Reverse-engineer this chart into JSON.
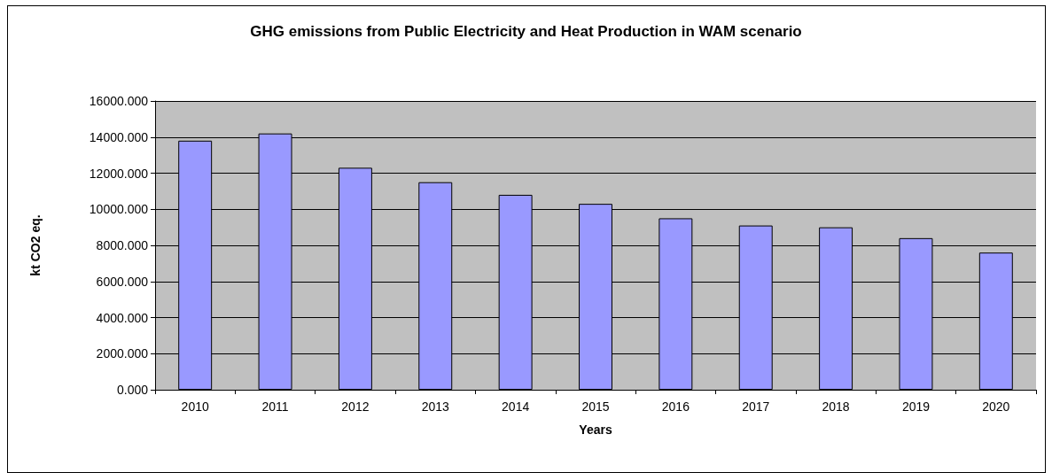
{
  "chart_data": {
    "type": "bar",
    "title": "GHG emissions from Public Electricity and Heat Production in WAM scenario",
    "xlabel": "Years",
    "ylabel": "kt CO2 eq.",
    "categories": [
      "2010",
      "2011",
      "2012",
      "2013",
      "2014",
      "2015",
      "2016",
      "2017",
      "2018",
      "2019",
      "2020"
    ],
    "values": [
      13800,
      14200,
      12300,
      11500,
      10800,
      10300,
      9500,
      9100,
      9000,
      8400,
      7600
    ],
    "color": "#9999ff",
    "ylim": [
      0,
      16000
    ],
    "yticks": [
      {
        "value": 0,
        "label": "0.000"
      },
      {
        "value": 2000,
        "label": "2000.000"
      },
      {
        "value": 4000,
        "label": "4000.000"
      },
      {
        "value": 6000,
        "label": "6000.000"
      },
      {
        "value": 8000,
        "label": "8000.000"
      },
      {
        "value": 10000,
        "label": "10000.000"
      },
      {
        "value": 12000,
        "label": "12000.000"
      },
      {
        "value": 14000,
        "label": "14000.000"
      },
      {
        "value": 16000,
        "label": "16000.000"
      }
    ],
    "grid": "y"
  }
}
